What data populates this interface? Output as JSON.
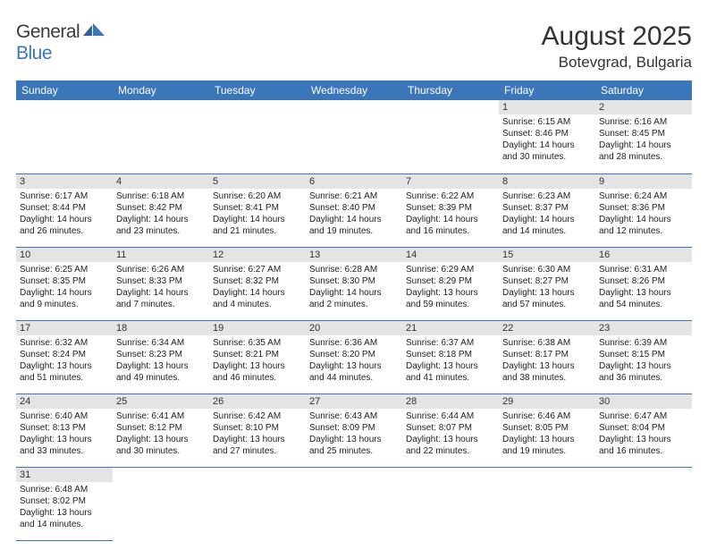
{
  "logo": {
    "text1": "General",
    "text2": "Blue"
  },
  "title": "August 2025",
  "location": "Botevgrad, Bulgaria",
  "colors": {
    "header_bg": "#3a76b9",
    "header_fg": "#ffffff",
    "daynum_bg": "#e4e4e4",
    "row_border": "#3a76b9",
    "text": "#333333"
  },
  "weekdays": [
    "Sunday",
    "Monday",
    "Tuesday",
    "Wednesday",
    "Thursday",
    "Friday",
    "Saturday"
  ],
  "weeks": [
    [
      {
        "n": "",
        "lines": []
      },
      {
        "n": "",
        "lines": []
      },
      {
        "n": "",
        "lines": []
      },
      {
        "n": "",
        "lines": []
      },
      {
        "n": "",
        "lines": []
      },
      {
        "n": "1",
        "lines": [
          "Sunrise: 6:15 AM",
          "Sunset: 8:46 PM",
          "Daylight: 14 hours and 30 minutes."
        ]
      },
      {
        "n": "2",
        "lines": [
          "Sunrise: 6:16 AM",
          "Sunset: 8:45 PM",
          "Daylight: 14 hours and 28 minutes."
        ]
      }
    ],
    [
      {
        "n": "3",
        "lines": [
          "Sunrise: 6:17 AM",
          "Sunset: 8:44 PM",
          "Daylight: 14 hours and 26 minutes."
        ]
      },
      {
        "n": "4",
        "lines": [
          "Sunrise: 6:18 AM",
          "Sunset: 8:42 PM",
          "Daylight: 14 hours and 23 minutes."
        ]
      },
      {
        "n": "5",
        "lines": [
          "Sunrise: 6:20 AM",
          "Sunset: 8:41 PM",
          "Daylight: 14 hours and 21 minutes."
        ]
      },
      {
        "n": "6",
        "lines": [
          "Sunrise: 6:21 AM",
          "Sunset: 8:40 PM",
          "Daylight: 14 hours and 19 minutes."
        ]
      },
      {
        "n": "7",
        "lines": [
          "Sunrise: 6:22 AM",
          "Sunset: 8:39 PM",
          "Daylight: 14 hours and 16 minutes."
        ]
      },
      {
        "n": "8",
        "lines": [
          "Sunrise: 6:23 AM",
          "Sunset: 8:37 PM",
          "Daylight: 14 hours and 14 minutes."
        ]
      },
      {
        "n": "9",
        "lines": [
          "Sunrise: 6:24 AM",
          "Sunset: 8:36 PM",
          "Daylight: 14 hours and 12 minutes."
        ]
      }
    ],
    [
      {
        "n": "10",
        "lines": [
          "Sunrise: 6:25 AM",
          "Sunset: 8:35 PM",
          "Daylight: 14 hours and 9 minutes."
        ]
      },
      {
        "n": "11",
        "lines": [
          "Sunrise: 6:26 AM",
          "Sunset: 8:33 PM",
          "Daylight: 14 hours and 7 minutes."
        ]
      },
      {
        "n": "12",
        "lines": [
          "Sunrise: 6:27 AM",
          "Sunset: 8:32 PM",
          "Daylight: 14 hours and 4 minutes."
        ]
      },
      {
        "n": "13",
        "lines": [
          "Sunrise: 6:28 AM",
          "Sunset: 8:30 PM",
          "Daylight: 14 hours and 2 minutes."
        ]
      },
      {
        "n": "14",
        "lines": [
          "Sunrise: 6:29 AM",
          "Sunset: 8:29 PM",
          "Daylight: 13 hours and 59 minutes."
        ]
      },
      {
        "n": "15",
        "lines": [
          "Sunrise: 6:30 AM",
          "Sunset: 8:27 PM",
          "Daylight: 13 hours and 57 minutes."
        ]
      },
      {
        "n": "16",
        "lines": [
          "Sunrise: 6:31 AM",
          "Sunset: 8:26 PM",
          "Daylight: 13 hours and 54 minutes."
        ]
      }
    ],
    [
      {
        "n": "17",
        "lines": [
          "Sunrise: 6:32 AM",
          "Sunset: 8:24 PM",
          "Daylight: 13 hours and 51 minutes."
        ]
      },
      {
        "n": "18",
        "lines": [
          "Sunrise: 6:34 AM",
          "Sunset: 8:23 PM",
          "Daylight: 13 hours and 49 minutes."
        ]
      },
      {
        "n": "19",
        "lines": [
          "Sunrise: 6:35 AM",
          "Sunset: 8:21 PM",
          "Daylight: 13 hours and 46 minutes."
        ]
      },
      {
        "n": "20",
        "lines": [
          "Sunrise: 6:36 AM",
          "Sunset: 8:20 PM",
          "Daylight: 13 hours and 44 minutes."
        ]
      },
      {
        "n": "21",
        "lines": [
          "Sunrise: 6:37 AM",
          "Sunset: 8:18 PM",
          "Daylight: 13 hours and 41 minutes."
        ]
      },
      {
        "n": "22",
        "lines": [
          "Sunrise: 6:38 AM",
          "Sunset: 8:17 PM",
          "Daylight: 13 hours and 38 minutes."
        ]
      },
      {
        "n": "23",
        "lines": [
          "Sunrise: 6:39 AM",
          "Sunset: 8:15 PM",
          "Daylight: 13 hours and 36 minutes."
        ]
      }
    ],
    [
      {
        "n": "24",
        "lines": [
          "Sunrise: 6:40 AM",
          "Sunset: 8:13 PM",
          "Daylight: 13 hours and 33 minutes."
        ]
      },
      {
        "n": "25",
        "lines": [
          "Sunrise: 6:41 AM",
          "Sunset: 8:12 PM",
          "Daylight: 13 hours and 30 minutes."
        ]
      },
      {
        "n": "26",
        "lines": [
          "Sunrise: 6:42 AM",
          "Sunset: 8:10 PM",
          "Daylight: 13 hours and 27 minutes."
        ]
      },
      {
        "n": "27",
        "lines": [
          "Sunrise: 6:43 AM",
          "Sunset: 8:09 PM",
          "Daylight: 13 hours and 25 minutes."
        ]
      },
      {
        "n": "28",
        "lines": [
          "Sunrise: 6:44 AM",
          "Sunset: 8:07 PM",
          "Daylight: 13 hours and 22 minutes."
        ]
      },
      {
        "n": "29",
        "lines": [
          "Sunrise: 6:46 AM",
          "Sunset: 8:05 PM",
          "Daylight: 13 hours and 19 minutes."
        ]
      },
      {
        "n": "30",
        "lines": [
          "Sunrise: 6:47 AM",
          "Sunset: 8:04 PM",
          "Daylight: 13 hours and 16 minutes."
        ]
      }
    ],
    [
      {
        "n": "31",
        "lines": [
          "Sunrise: 6:48 AM",
          "Sunset: 8:02 PM",
          "Daylight: 13 hours and 14 minutes."
        ]
      },
      {
        "n": "",
        "lines": []
      },
      {
        "n": "",
        "lines": []
      },
      {
        "n": "",
        "lines": []
      },
      {
        "n": "",
        "lines": []
      },
      {
        "n": "",
        "lines": []
      },
      {
        "n": "",
        "lines": []
      }
    ]
  ]
}
